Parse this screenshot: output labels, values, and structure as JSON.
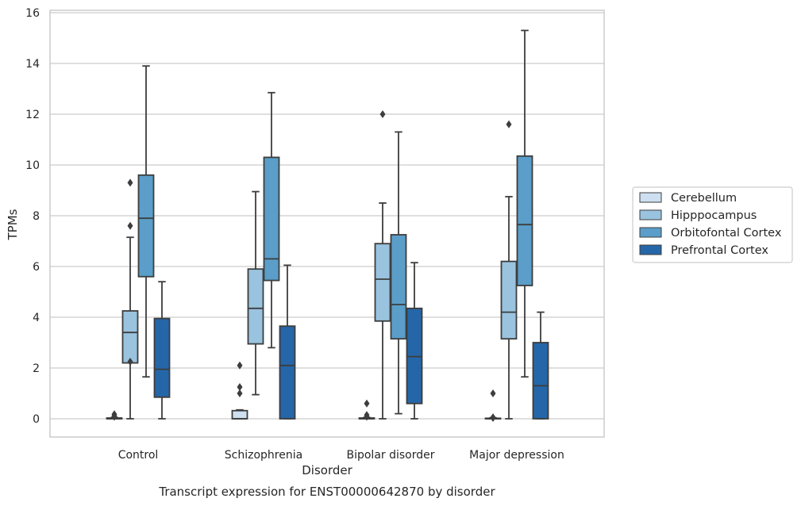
{
  "caption": "Transcript expression for ENST00000642870 by disorder",
  "chart_data": {
    "type": "box",
    "xlabel": "Disorder",
    "ylabel": "TPMs",
    "ylim": [
      -0.72,
      16.1
    ],
    "yticks": [
      0,
      2,
      4,
      6,
      8,
      10,
      12,
      14,
      16
    ],
    "grid": "horizontal",
    "legend_position": "right",
    "categories": [
      "Control",
      "Schizophrenia",
      "Bipolar disorder",
      "Major depression"
    ],
    "series": [
      {
        "name": "Cerebellum",
        "color": "#cddff0",
        "boxes": [
          {
            "whislo": 0,
            "q1": 0,
            "med": 0,
            "q3": 0.03,
            "whishi": 0.05,
            "fliers": [
              0.18,
              0.12,
              0.08
            ]
          },
          {
            "whislo": 0,
            "q1": 0,
            "med": 0,
            "q3": 0.32,
            "whishi": 0.35,
            "fliers": [
              2.1,
              1.25,
              1.0
            ]
          },
          {
            "whislo": 0,
            "q1": 0,
            "med": 0,
            "q3": 0.03,
            "whishi": 0.05,
            "fliers": [
              0.6,
              0.15,
              0.08
            ]
          },
          {
            "whislo": 0,
            "q1": 0,
            "med": 0,
            "q3": 0.02,
            "whishi": 0.04,
            "fliers": [
              1.0,
              0.06,
              0.03
            ]
          }
        ]
      },
      {
        "name": "Hipppocampus",
        "color": "#99c3df",
        "boxes": [
          {
            "whislo": 0,
            "q1": 2.2,
            "med": 3.4,
            "q3": 4.25,
            "whishi": 7.15,
            "fliers": [
              9.3,
              7.6,
              2.25
            ]
          },
          {
            "whislo": 0.95,
            "q1": 2.95,
            "med": 4.35,
            "q3": 5.9,
            "whishi": 8.95,
            "fliers": []
          },
          {
            "whislo": 0,
            "q1": 3.85,
            "med": 5.5,
            "q3": 6.9,
            "whishi": 8.5,
            "fliers": [
              12.0
            ]
          },
          {
            "whislo": 0,
            "q1": 3.15,
            "med": 4.2,
            "q3": 6.2,
            "whishi": 8.75,
            "fliers": [
              11.6
            ]
          }
        ]
      },
      {
        "name": "Orbitofontal Cortex",
        "color": "#5a9ec9",
        "boxes": [
          {
            "whislo": 1.65,
            "q1": 5.6,
            "med": 7.9,
            "q3": 9.6,
            "whishi": 13.9,
            "fliers": []
          },
          {
            "whislo": 2.8,
            "q1": 5.45,
            "med": 6.3,
            "q3": 10.3,
            "whishi": 12.85,
            "fliers": []
          },
          {
            "whislo": 0.2,
            "q1": 3.15,
            "med": 4.5,
            "q3": 7.25,
            "whishi": 11.3,
            "fliers": []
          },
          {
            "whislo": 1.65,
            "q1": 5.25,
            "med": 7.65,
            "q3": 10.35,
            "whishi": 15.3,
            "fliers": []
          }
        ]
      },
      {
        "name": "Prefrontal Cortex",
        "color": "#2566a8",
        "boxes": [
          {
            "whislo": 0,
            "q1": 0.85,
            "med": 1.95,
            "q3": 3.95,
            "whishi": 5.4,
            "fliers": []
          },
          {
            "whislo": 0,
            "q1": 0,
            "med": 2.1,
            "q3": 3.65,
            "whishi": 6.05,
            "fliers": []
          },
          {
            "whislo": 0,
            "q1": 0.6,
            "med": 2.45,
            "q3": 4.35,
            "whishi": 6.15,
            "fliers": []
          },
          {
            "whislo": 0,
            "q1": 0,
            "med": 1.3,
            "q3": 3.0,
            "whishi": 4.2,
            "fliers": []
          }
        ]
      }
    ]
  }
}
